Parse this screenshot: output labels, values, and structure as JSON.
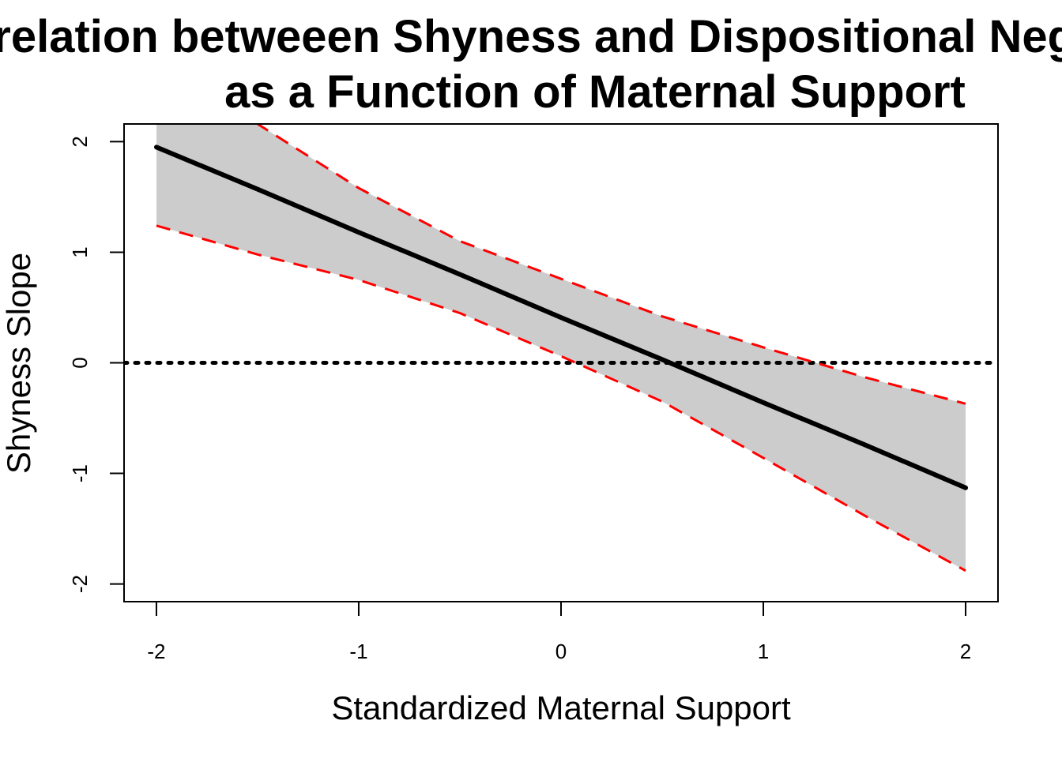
{
  "chart_data": {
    "type": "line",
    "title_lines": [
      "Correlation betweeen Shyness and Dispositional Negativity",
      "as a Function of Maternal Support"
    ],
    "xlabel": "Standardized Maternal Support",
    "ylabel": "Shyness Slope",
    "xlim": [
      -2.16,
      2.16
    ],
    "ylim": [
      -2.16,
      2.16
    ],
    "x_ticks": [
      -2,
      -1,
      0,
      1,
      2
    ],
    "y_ticks": [
      -2,
      -1,
      0,
      1,
      2
    ],
    "x": [
      -2,
      -1.5,
      -1,
      -0.5,
      0,
      0.5,
      1,
      1.5,
      2
    ],
    "series": [
      {
        "role": "estimate",
        "values": [
          1.95,
          1.57,
          1.18,
          0.8,
          0.41,
          0.03,
          -0.36,
          -0.74,
          -1.13
        ]
      },
      {
        "role": "upper",
        "values": [
          2.75,
          2.16,
          1.58,
          1.1,
          0.76,
          0.42,
          0.14,
          -0.13,
          -0.37
        ]
      },
      {
        "role": "lower",
        "values": [
          1.24,
          0.98,
          0.75,
          0.45,
          0.06,
          -0.35,
          -0.86,
          -1.38,
          -1.88
        ]
      }
    ],
    "reference_line": {
      "y": 0,
      "style": "dotted"
    },
    "colors": {
      "estimate": "#000000",
      "band": "#cccccc",
      "bounds": "#ff0000"
    },
    "grid": false,
    "legend": "none"
  }
}
